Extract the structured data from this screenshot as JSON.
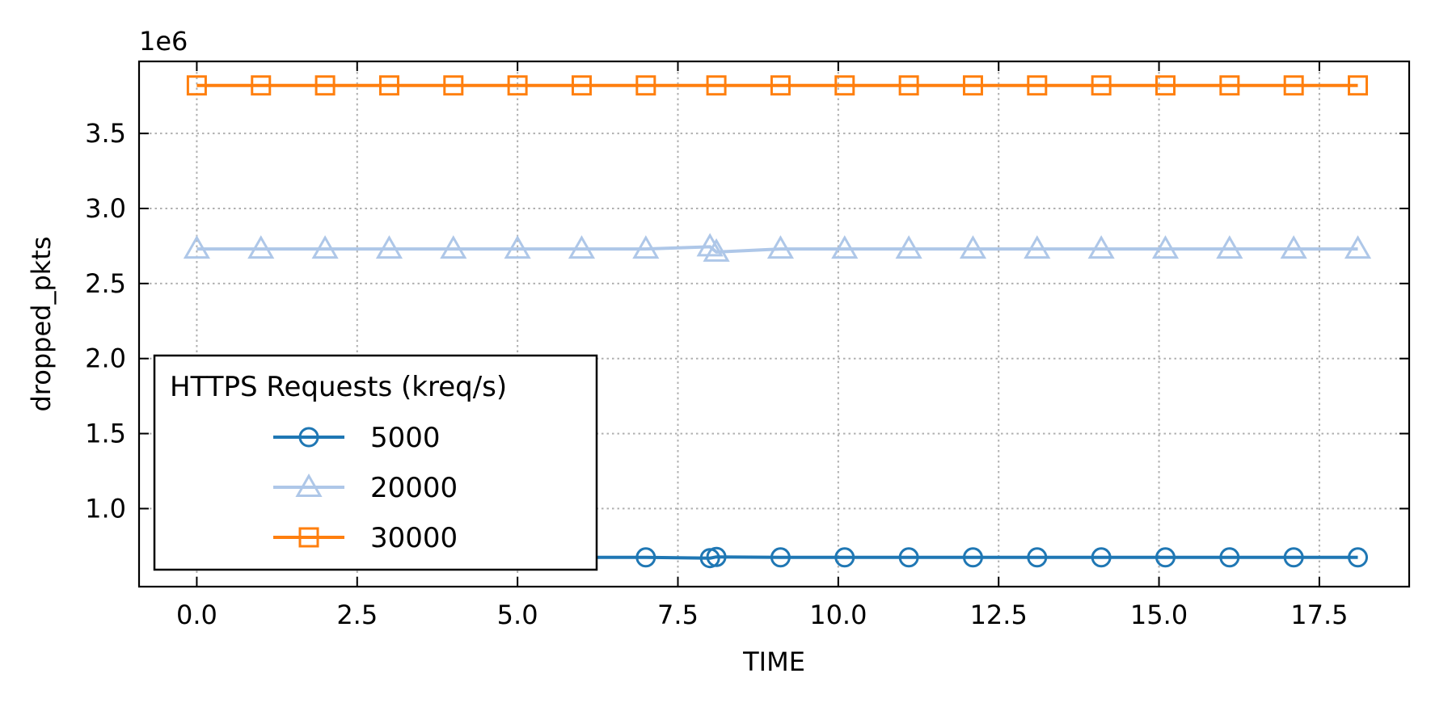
{
  "chart_data": {
    "type": "line",
    "xlabel": "TIME",
    "ylabel": "dropped_pkts",
    "y_offset_text": "1e6",
    "xlim": [
      -0.9,
      18.9
    ],
    "ylim": [
      0.48,
      3.98
    ],
    "x_ticks": [
      0.0,
      2.5,
      5.0,
      7.5,
      10.0,
      12.5,
      15.0,
      17.5
    ],
    "x_tick_labels": [
      "0.0",
      "2.5",
      "5.0",
      "7.5",
      "10.0",
      "12.5",
      "15.0",
      "17.5"
    ],
    "y_ticks": [
      1.0,
      1.5,
      2.0,
      2.5,
      3.0,
      3.5
    ],
    "y_tick_labels": [
      "1.0",
      "1.5",
      "2.0",
      "2.5",
      "3.0",
      "3.5"
    ],
    "grid": true,
    "legend": {
      "title": "HTTPS Requests (kreq/s)",
      "placement": "lower-left"
    },
    "series": [
      {
        "name": "5000",
        "color": "#1f77b4",
        "marker": "circle",
        "x": [
          0,
          1,
          2,
          3,
          4,
          5,
          6,
          7,
          8.0,
          8.1,
          9.1,
          10.1,
          11.1,
          12.1,
          13.1,
          14.1,
          15.1,
          16.1,
          17.1,
          18.1
        ],
        "y": [
          0.675,
          0.675,
          0.675,
          0.675,
          0.675,
          0.675,
          0.675,
          0.675,
          0.67,
          0.678,
          0.675,
          0.675,
          0.675,
          0.675,
          0.675,
          0.675,
          0.675,
          0.675,
          0.675,
          0.675
        ]
      },
      {
        "name": "20000",
        "color": "#aec7e8",
        "marker": "triangle",
        "x": [
          0,
          1,
          2,
          3,
          4,
          5,
          6,
          7,
          8.0,
          8.1,
          9.1,
          10.1,
          11.1,
          12.1,
          13.1,
          14.1,
          15.1,
          16.1,
          17.1,
          18.1
        ],
        "y": [
          2.73,
          2.73,
          2.73,
          2.73,
          2.73,
          2.73,
          2.73,
          2.73,
          2.745,
          2.71,
          2.73,
          2.73,
          2.73,
          2.73,
          2.73,
          2.73,
          2.73,
          2.73,
          2.73,
          2.73
        ]
      },
      {
        "name": "30000",
        "color": "#ff7f0e",
        "marker": "square",
        "x": [
          0,
          1,
          2,
          3,
          4,
          5,
          6,
          7,
          8.1,
          9.1,
          10.1,
          11.1,
          12.1,
          13.1,
          14.1,
          15.1,
          16.1,
          17.1,
          18.1
        ],
        "y": [
          3.82,
          3.82,
          3.82,
          3.82,
          3.82,
          3.82,
          3.82,
          3.82,
          3.82,
          3.82,
          3.82,
          3.82,
          3.82,
          3.82,
          3.82,
          3.82,
          3.82,
          3.82,
          3.82
        ]
      }
    ]
  }
}
